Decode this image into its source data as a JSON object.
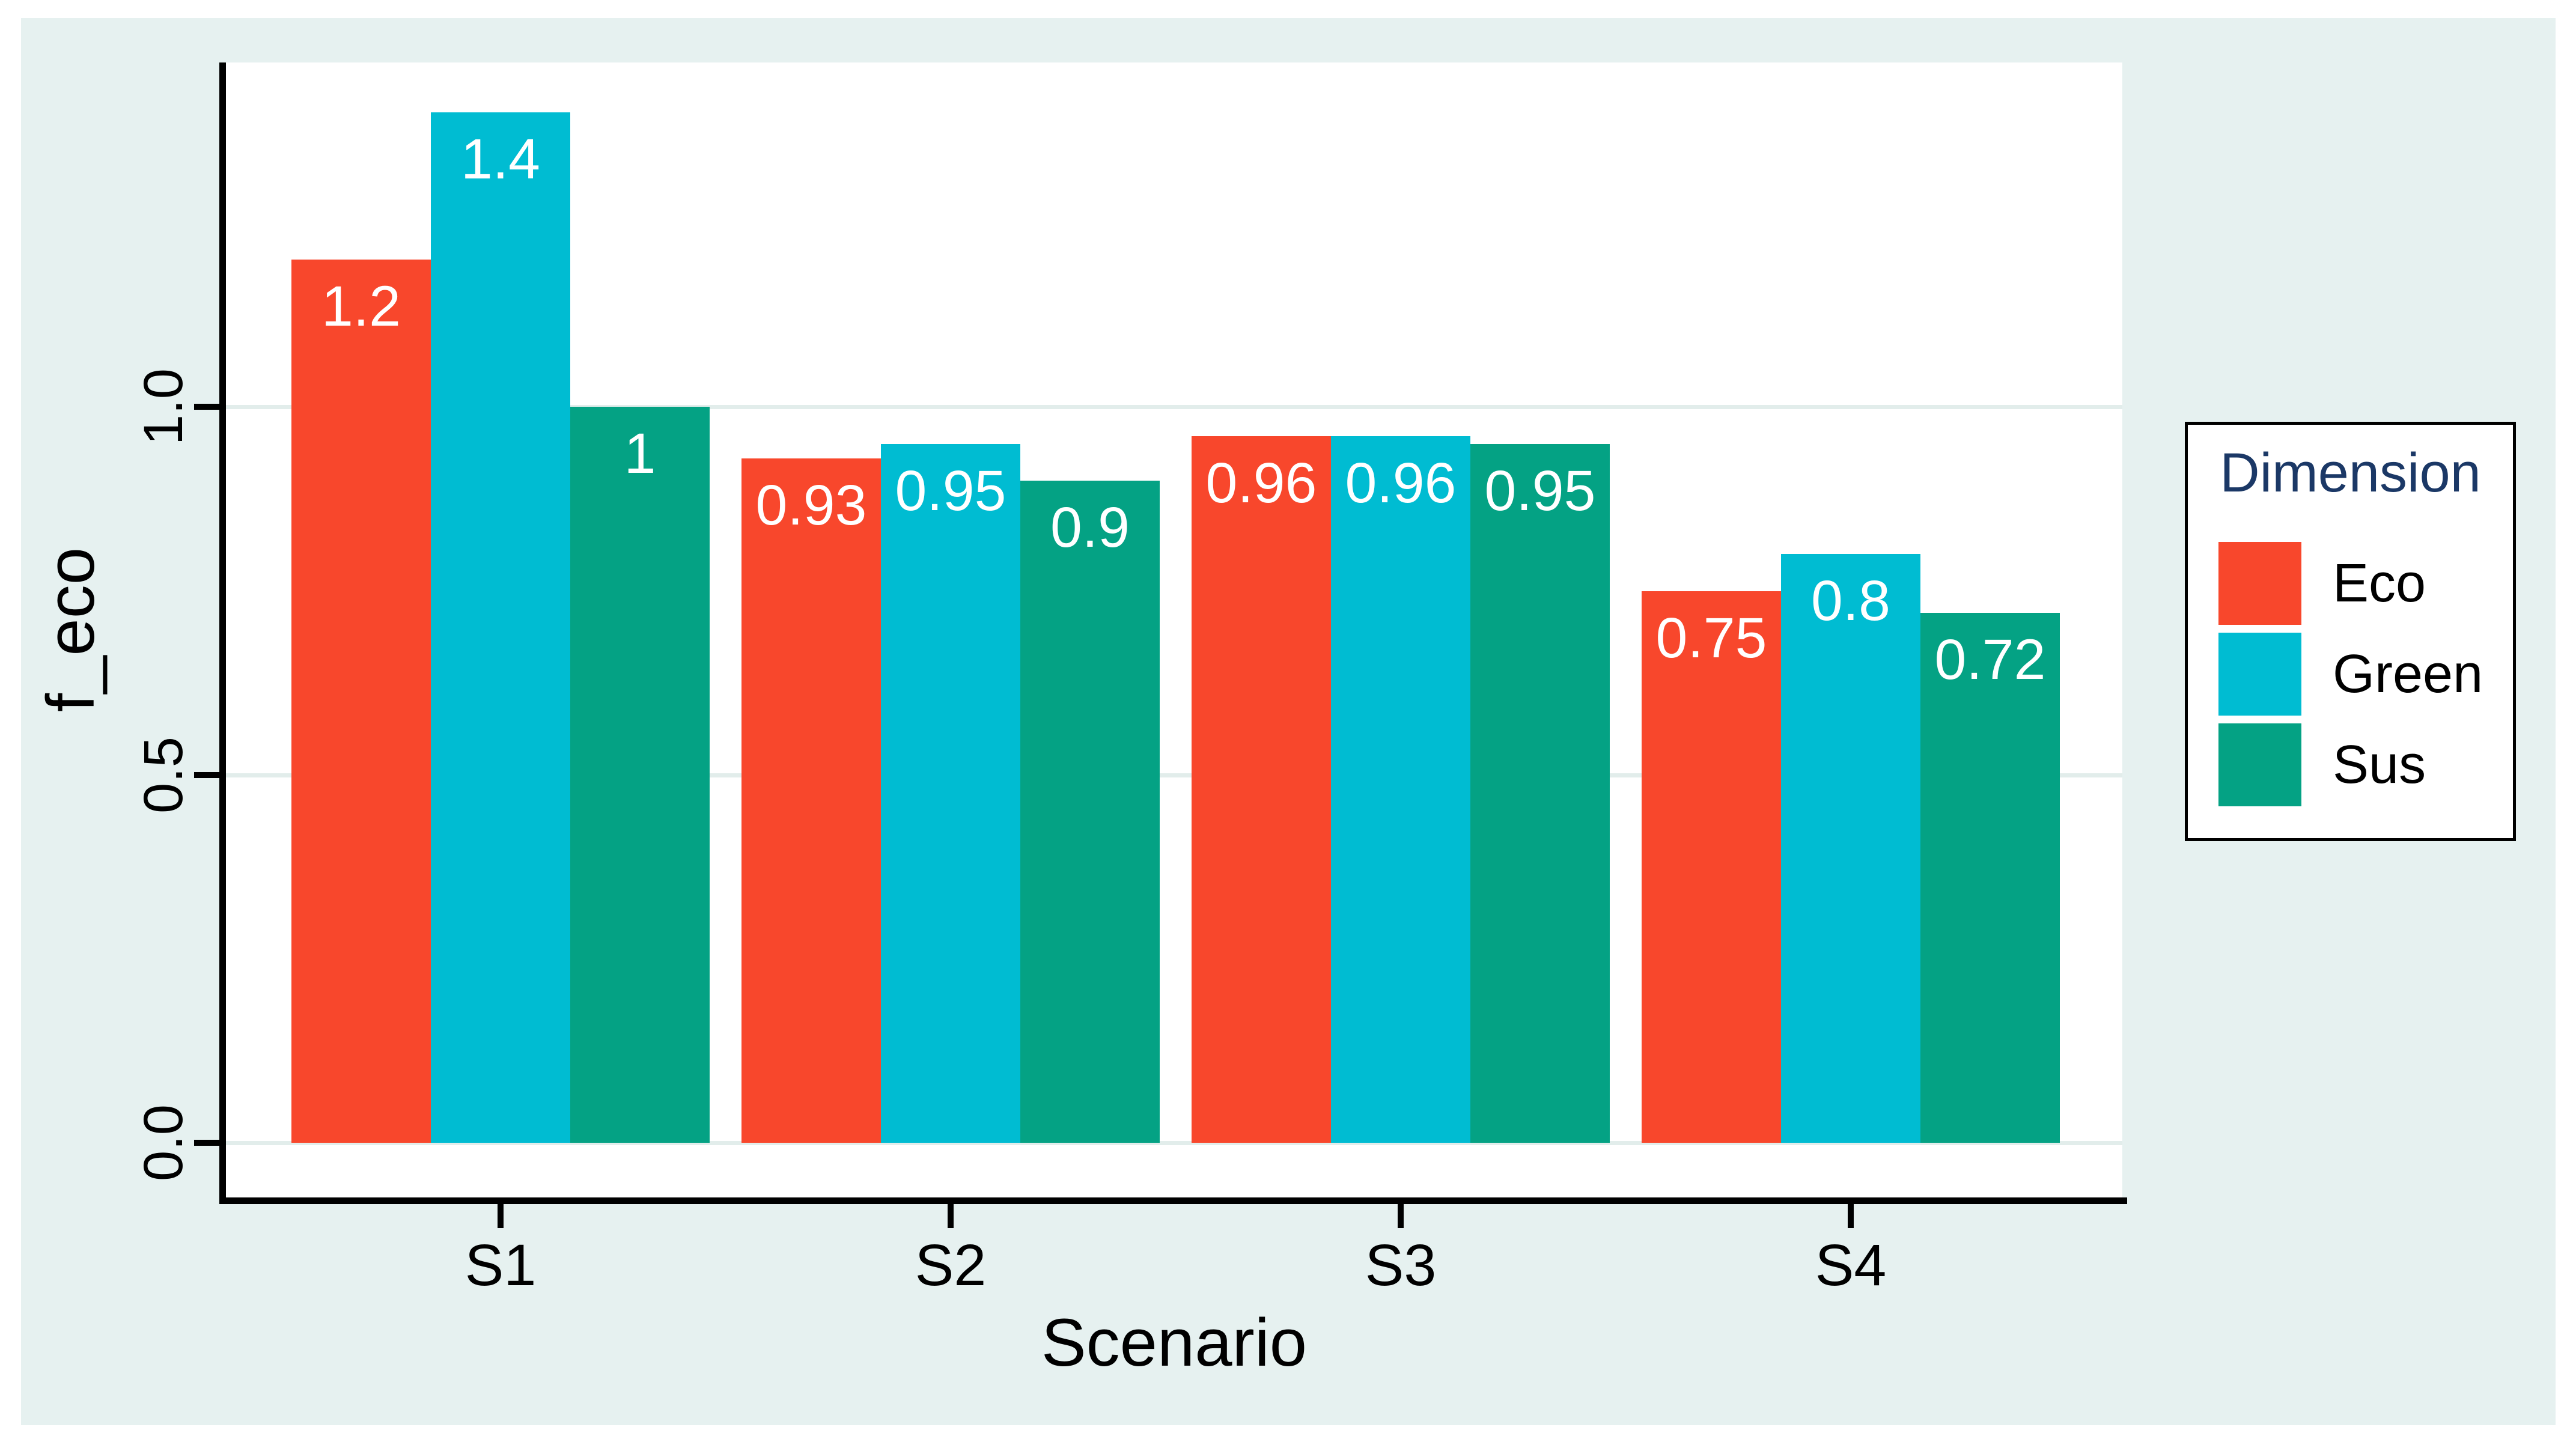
{
  "chart_data": {
    "type": "bar",
    "title": "",
    "categories": [
      "S1",
      "S2",
      "S3",
      "S4"
    ],
    "series": [
      {
        "name": "Eco",
        "color": "#f8472c",
        "values": [
          1.2,
          0.93,
          0.96,
          0.75
        ],
        "value_labels": [
          "1.2",
          "0.93",
          "0.96",
          "0.75"
        ]
      },
      {
        "name": "Green",
        "color": "#00bcd2",
        "values": [
          1.4,
          0.95,
          0.96,
          0.8
        ],
        "value_labels": [
          "1.4",
          "0.95",
          "0.96",
          "0.8"
        ]
      },
      {
        "name": "Sus",
        "color": "#04a284",
        "values": [
          1.0,
          0.9,
          0.95,
          0.72
        ],
        "value_labels": [
          "1",
          "0.9",
          "0.95",
          "0.72"
        ]
      }
    ],
    "xlabel": "Scenario",
    "ylabel": "f_eco",
    "yticks": [
      0.0,
      0.5,
      1.0
    ],
    "ytick_labels": [
      "0.0",
      "0.5",
      "1.0"
    ],
    "ylim": [
      -0.074,
      1.468
    ],
    "grid": "horizontal-gridlines-at-yticks",
    "legend_title": "Dimension",
    "legend_position": "right",
    "bar_value_label_color": "#ffffff"
  },
  "colors": {
    "page_background": "#ffffff",
    "graph_background": "#e6f1f0",
    "plot_background": "#ffffff",
    "axis_line": "#000000",
    "gridline": "#e2edeb",
    "tick_text": "#000000",
    "legend_title_text": "#1b3866",
    "legend_border": "#000000",
    "legend_background": "#ffffff"
  }
}
